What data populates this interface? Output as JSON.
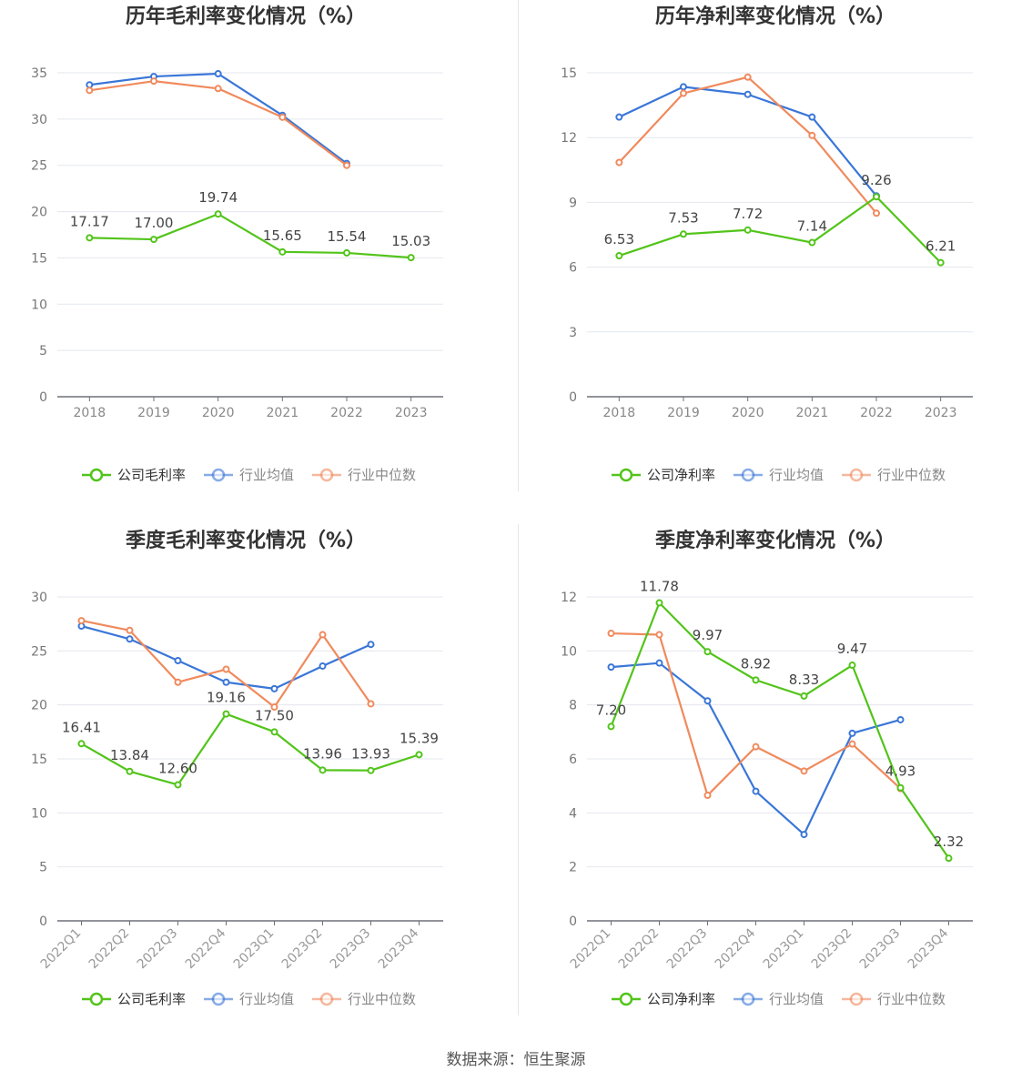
{
  "footer": {
    "source": "数据来源：恒生聚源"
  },
  "chart_data": [
    {
      "type": "line",
      "title": "历年毛利率变化情况（%）",
      "categories": [
        "2018",
        "2019",
        "2020",
        "2021",
        "2022",
        "2023"
      ],
      "ylim": [
        0,
        35
      ],
      "yticks": [
        0,
        5,
        10,
        15,
        20,
        25,
        30,
        35
      ],
      "grid": true,
      "legend_position": "bottom",
      "series": [
        {
          "name": "公司毛利率",
          "color": "#52c41a",
          "labels": true,
          "values": [
            17.17,
            17.0,
            19.74,
            15.65,
            15.54,
            15.03
          ]
        },
        {
          "name": "行业均值",
          "color": "#3a76d8",
          "labels": false,
          "values": [
            33.7,
            34.6,
            34.9,
            30.4,
            25.2,
            null
          ]
        },
        {
          "name": "行业中位数",
          "color": "#f08a5d",
          "labels": false,
          "values": [
            33.1,
            34.1,
            33.3,
            30.2,
            25.0,
            null
          ]
        }
      ]
    },
    {
      "type": "line",
      "title": "历年净利率变化情况（%）",
      "categories": [
        "2018",
        "2019",
        "2020",
        "2021",
        "2022",
        "2023"
      ],
      "ylim": [
        0,
        15
      ],
      "yticks": [
        0,
        3,
        6,
        9,
        12,
        15
      ],
      "grid": true,
      "legend_position": "bottom",
      "series": [
        {
          "name": "公司净利率",
          "color": "#52c41a",
          "labels": true,
          "values": [
            6.53,
            7.53,
            7.72,
            7.14,
            9.26,
            6.21
          ]
        },
        {
          "name": "行业均值",
          "color": "#3a76d8",
          "labels": false,
          "values": [
            12.95,
            14.35,
            14.0,
            12.95,
            9.3,
            null
          ]
        },
        {
          "name": "行业中位数",
          "color": "#f08a5d",
          "labels": false,
          "values": [
            10.85,
            14.05,
            14.8,
            12.1,
            8.5,
            null
          ]
        }
      ]
    },
    {
      "type": "line",
      "title": "季度毛利率变化情况（%）",
      "categories": [
        "2022Q1",
        "2022Q2",
        "2022Q3",
        "2022Q4",
        "2023Q1",
        "2023Q2",
        "2023Q3",
        "2023Q4"
      ],
      "ylim": [
        0,
        30
      ],
      "yticks": [
        0,
        5,
        10,
        15,
        20,
        25,
        30
      ],
      "grid": true,
      "rotated_xlabels": true,
      "legend_position": "bottom",
      "series": [
        {
          "name": "公司毛利率",
          "color": "#52c41a",
          "labels": true,
          "values": [
            16.41,
            13.84,
            12.6,
            19.16,
            17.5,
            13.96,
            13.93,
            15.39
          ]
        },
        {
          "name": "行业均值",
          "color": "#3a76d8",
          "labels": false,
          "values": [
            27.3,
            26.1,
            24.1,
            22.1,
            21.5,
            23.6,
            25.6,
            null
          ]
        },
        {
          "name": "行业中位数",
          "color": "#f08a5d",
          "labels": false,
          "values": [
            27.8,
            26.9,
            22.1,
            23.3,
            19.8,
            26.5,
            20.1,
            null
          ]
        }
      ]
    },
    {
      "type": "line",
      "title": "季度净利率变化情况（%）",
      "categories": [
        "2022Q1",
        "2022Q2",
        "2022Q3",
        "2022Q4",
        "2023Q1",
        "2023Q2",
        "2023Q3",
        "2023Q4"
      ],
      "ylim": [
        0,
        12
      ],
      "yticks": [
        0,
        2,
        4,
        6,
        8,
        10,
        12
      ],
      "grid": true,
      "rotated_xlabels": true,
      "legend_position": "bottom",
      "series": [
        {
          "name": "公司净利率",
          "color": "#52c41a",
          "labels": true,
          "values": [
            7.2,
            11.78,
            9.97,
            8.92,
            8.33,
            9.47,
            4.93,
            2.32
          ]
        },
        {
          "name": "行业均值",
          "color": "#3a76d8",
          "labels": false,
          "values": [
            9.4,
            9.55,
            8.15,
            4.8,
            3.2,
            6.95,
            7.45,
            null
          ]
        },
        {
          "name": "行业中位数",
          "color": "#f08a5d",
          "labels": false,
          "values": [
            10.65,
            10.6,
            4.65,
            6.45,
            5.55,
            6.55,
            4.9,
            null
          ]
        }
      ]
    }
  ]
}
